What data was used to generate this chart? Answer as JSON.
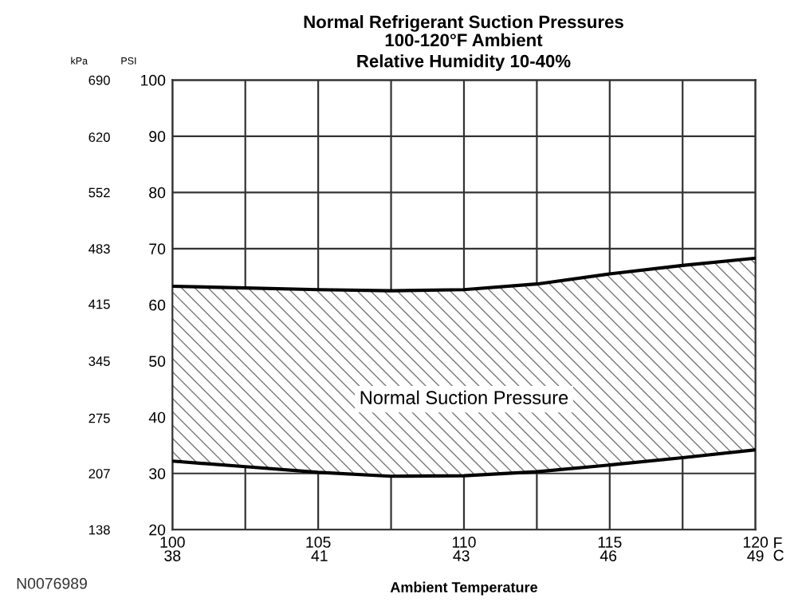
{
  "chart_data": {
    "type": "line",
    "title": "Normal Refrigerant Suction Pressures",
    "subtitle": "100-120°F Ambient\nRelative Humidity 10-40%",
    "xlabel": "Ambient Temperature",
    "ylabel": "PSI",
    "y2label": "kPa",
    "x2label": "C",
    "x": [
      100,
      102.5,
      105,
      107.5,
      110,
      112.5,
      115,
      117.5,
      120
    ],
    "series": [
      {
        "color": "#000000",
        "values": [
          63.3,
          63.0,
          62.7,
          62.5,
          62.7,
          63.7,
          65.5,
          67.0,
          68.3
        ],
        "upper": [
          63.3,
          63.0,
          62.7,
          62.5,
          62.7,
          63.7,
          65.5,
          67.0,
          68.3
        ],
        "lower": [
          32.2,
          31.2,
          30.2,
          29.5,
          29.6,
          30.3,
          31.5,
          32.8,
          34.2
        ]
      },
      {
        "color": "#000000",
        "values": [
          32.2,
          31.2,
          30.2,
          29.5,
          29.6,
          30.3,
          31.5,
          32.8,
          34.2
        ]
      }
    ],
    "xlim": [
      100,
      120
    ],
    "xticks": [
      100,
      {
        "value": 102.5,
        "label": null
      },
      105,
      {
        "value": 107.5,
        "label": null
      },
      110,
      {
        "value": 112.5,
        "label": null
      },
      115,
      {
        "value": 117.5,
        "label": null
      },
      120
    ],
    "x2lim": [
      37.8,
      48.9
    ],
    "x2ticks": [
      {
        "value": 37.8,
        "label": "38"
      },
      {
        "value": 40.6,
        "label": "41"
      },
      {
        "value": 43.3,
        "label": "43"
      },
      {
        "value": 46.1,
        "label": "46"
      },
      {
        "value": 48.9,
        "label": "49"
      }
    ],
    "ylim": [
      20,
      100
    ],
    "yticks": [
      20,
      30,
      40,
      50,
      60,
      70,
      80,
      90,
      100
    ],
    "y2lim": [
      138,
      690
    ],
    "y2ticks": [
      138,
      207,
      275,
      345,
      415,
      483,
      552,
      620,
      690
    ],
    "grid": true,
    "annotations": [
      "Normal Suction Pressure",
      "F",
      "N0076989"
    ]
  }
}
